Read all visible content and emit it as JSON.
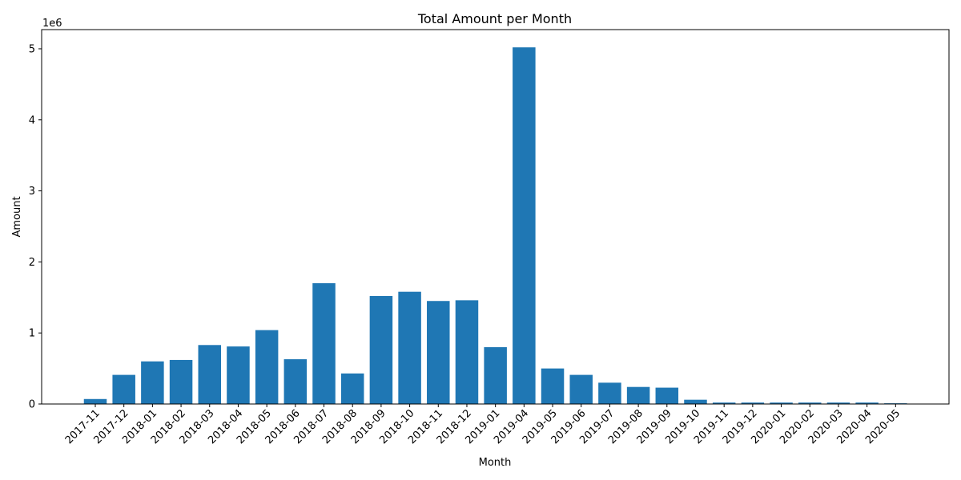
{
  "chart_data": {
    "type": "bar",
    "title": "Total Amount per Month",
    "xlabel": "Month",
    "ylabel": "Amount",
    "y_offset_text": "1e6",
    "bar_color": "#1f77b4",
    "ylim": [
      0,
      5.27
    ],
    "yticks": [
      0,
      1,
      2,
      3,
      4,
      5
    ],
    "categories": [
      "2017-11",
      "2017-12",
      "2018-01",
      "2018-02",
      "2018-03",
      "2018-04",
      "2018-05",
      "2018-06",
      "2018-07",
      "2018-08",
      "2018-09",
      "2018-10",
      "2018-11",
      "2018-12",
      "2019-01",
      "2019-04",
      "2019-05",
      "2019-06",
      "2019-07",
      "2019-08",
      "2019-09",
      "2019-10",
      "2019-11",
      "2019-12",
      "2020-01",
      "2020-02",
      "2020-03",
      "2020-04",
      "2020-05"
    ],
    "values": [
      0.07,
      0.41,
      0.6,
      0.62,
      0.83,
      0.81,
      1.04,
      0.63,
      1.7,
      0.43,
      1.52,
      1.58,
      1.45,
      1.46,
      0.8,
      5.02,
      0.5,
      0.41,
      0.3,
      0.24,
      0.23,
      0.06,
      0.02,
      0.02,
      0.02,
      0.02,
      0.02,
      0.02,
      0.01
    ]
  }
}
